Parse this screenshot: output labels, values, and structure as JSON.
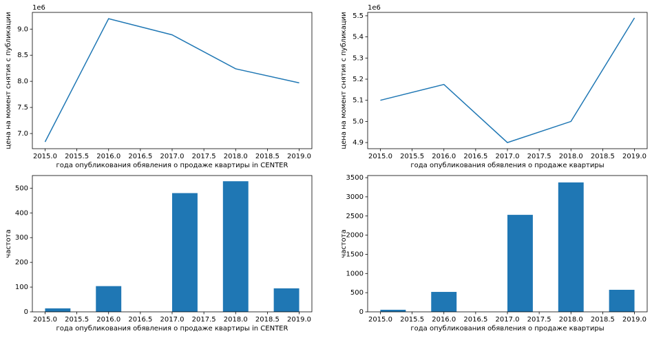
{
  "chart_data": [
    {
      "type": "line",
      "color": "#1f77b4",
      "x": [
        2015,
        2016,
        2017,
        2018,
        2019
      ],
      "values": [
        6840000,
        9200000,
        8890000,
        8240000,
        7970000
      ],
      "xlim": [
        2014.8,
        2019.2
      ],
      "xticks": [
        {
          "value": 2015,
          "label": "2015.0"
        },
        {
          "value": 2015.5,
          "label": "2015.5"
        },
        {
          "value": 2016,
          "label": "2016.0"
        },
        {
          "value": 2016.5,
          "label": "2016.5"
        },
        {
          "value": 2017,
          "label": "2017.0"
        },
        {
          "value": 2017.5,
          "label": "2017.5"
        },
        {
          "value": 2018,
          "label": "2018.0"
        },
        {
          "value": 2018.5,
          "label": "2018.5"
        },
        {
          "value": 2019,
          "label": "2019.0"
        }
      ],
      "ylim": [
        6710000,
        9320000
      ],
      "yticks": [
        {
          "value": 7000000,
          "label": "7.0"
        },
        {
          "value": 7500000,
          "label": "7.5"
        },
        {
          "value": 8000000,
          "label": "8.0"
        },
        {
          "value": 8500000,
          "label": "8.5"
        },
        {
          "value": 9000000,
          "label": "9.0"
        }
      ],
      "offset_label": "1e6",
      "x_label": "года опубликования обявления о продаже квартиры in CENTER",
      "y_label": "цена на момент снятия с публикации"
    },
    {
      "type": "line",
      "color": "#1f77b4",
      "x": [
        2015,
        2016,
        2017,
        2018,
        2019
      ],
      "values": [
        5100000,
        5175000,
        4900000,
        5000000,
        5490000
      ],
      "xlim": [
        2014.8,
        2019.2
      ],
      "xticks": [
        {
          "value": 2015,
          "label": "2015.0"
        },
        {
          "value": 2015.5,
          "label": "2015.5"
        },
        {
          "value": 2016,
          "label": "2016.0"
        },
        {
          "value": 2016.5,
          "label": "2016.5"
        },
        {
          "value": 2017,
          "label": "2017.0"
        },
        {
          "value": 2017.5,
          "label": "2017.5"
        },
        {
          "value": 2018,
          "label": "2018.0"
        },
        {
          "value": 2018.5,
          "label": "2018.5"
        },
        {
          "value": 2019,
          "label": "2019.0"
        }
      ],
      "ylim": [
        4871000,
        5516000
      ],
      "yticks": [
        {
          "value": 4900000,
          "label": "4.9"
        },
        {
          "value": 5000000,
          "label": "5.0"
        },
        {
          "value": 5100000,
          "label": "5.1"
        },
        {
          "value": 5200000,
          "label": "5.2"
        },
        {
          "value": 5300000,
          "label": "5.3"
        },
        {
          "value": 5400000,
          "label": "5.4"
        },
        {
          "value": 5500000,
          "label": "5.5"
        }
      ],
      "offset_label": "1e6",
      "x_label": "года опубликования обявления о продаже квартиры",
      "y_label": "цена на момент снятия с публикации"
    },
    {
      "type": "histogram",
      "color": "#1f77b4",
      "bins": [
        2015.0,
        2015.4,
        2015.8,
        2016.2,
        2016.6,
        2017.0,
        2017.4,
        2017.8,
        2018.2,
        2018.6,
        2019.0
      ],
      "values": [
        14,
        0,
        104,
        0,
        0,
        480,
        0,
        528,
        0,
        95
      ],
      "xlim": [
        2014.8,
        2019.2
      ],
      "xticks": [
        {
          "value": 2015,
          "label": "2015.0"
        },
        {
          "value": 2015.5,
          "label": "2015.5"
        },
        {
          "value": 2016,
          "label": "2016.0"
        },
        {
          "value": 2016.5,
          "label": "2016.5"
        },
        {
          "value": 2017,
          "label": "2017.0"
        },
        {
          "value": 2017.5,
          "label": "2017.5"
        },
        {
          "value": 2018,
          "label": "2018.0"
        },
        {
          "value": 2018.5,
          "label": "2018.5"
        },
        {
          "value": 2019,
          "label": "2019.0"
        }
      ],
      "ylim": [
        0,
        551
      ],
      "yticks": [
        0,
        100,
        200,
        300,
        400,
        500
      ],
      "x_label": "года опубликования обявления о продаже квартиры in CENTER",
      "y_label": "частота"
    },
    {
      "type": "histogram",
      "color": "#1f77b4",
      "bins": [
        2015.0,
        2015.4,
        2015.8,
        2016.2,
        2016.6,
        2017.0,
        2017.4,
        2017.8,
        2018.2,
        2018.6,
        2019.0
      ],
      "values": [
        54,
        0,
        520,
        0,
        0,
        2530,
        0,
        3375,
        0,
        575
      ],
      "xlim": [
        2014.8,
        2019.2
      ],
      "xticks": [
        {
          "value": 2015,
          "label": "2015.0"
        },
        {
          "value": 2015.5,
          "label": "2015.5"
        },
        {
          "value": 2016,
          "label": "2016.0"
        },
        {
          "value": 2016.5,
          "label": "2016.5"
        },
        {
          "value": 2017,
          "label": "2017.0"
        },
        {
          "value": 2017.5,
          "label": "2017.5"
        },
        {
          "value": 2018,
          "label": "2018.0"
        },
        {
          "value": 2018.5,
          "label": "2018.5"
        },
        {
          "value": 2019,
          "label": "2019.0"
        }
      ],
      "ylim": [
        0,
        3555
      ],
      "yticks": [
        0,
        500,
        1000,
        1500,
        2000,
        2500,
        3000,
        3500
      ],
      "x_label": "года опубликования обявления о продаже квартиры",
      "y_label": "частота"
    }
  ]
}
